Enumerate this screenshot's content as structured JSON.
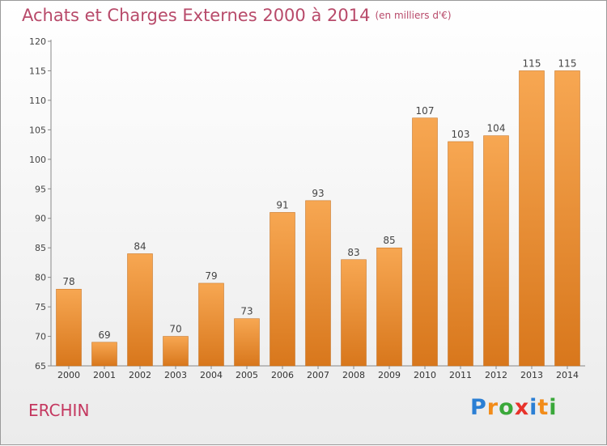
{
  "header": {
    "title": "Achats et Charges Externes 2000 à 2014",
    "subtitle": "(en milliers d'€)"
  },
  "commune": "ERCHIN",
  "brand": {
    "letters": [
      "P",
      "r",
      "o",
      "x",
      "i",
      "t",
      "i"
    ],
    "colors": [
      "#2b7fd4",
      "#f28c1a",
      "#3aa83a",
      "#e8322a",
      "#2b7fd4",
      "#f28c1a",
      "#3aa83a"
    ]
  },
  "colors": {
    "bar_light": "#f7a752",
    "bar_dark": "#d8771c",
    "title": "#b84a6a",
    "commune": "#c4375f"
  },
  "chart_data": {
    "type": "bar",
    "title": "Achats et Charges Externes 2000 à 2014",
    "subtitle": "(en milliers d'€)",
    "categories": [
      "2000",
      "2001",
      "2002",
      "2003",
      "2004",
      "2005",
      "2006",
      "2007",
      "2008",
      "2009",
      "2010",
      "2011",
      "2012",
      "2013",
      "2014"
    ],
    "values": [
      78,
      69,
      84,
      70,
      79,
      73,
      91,
      93,
      83,
      85,
      107,
      103,
      104,
      115,
      115
    ],
    "yticks": [
      65,
      70,
      75,
      80,
      85,
      90,
      95,
      100,
      105,
      110,
      115,
      120
    ],
    "ylim": [
      65,
      120
    ],
    "xlabel": "",
    "ylabel": "",
    "grid": false,
    "legend": "none"
  }
}
